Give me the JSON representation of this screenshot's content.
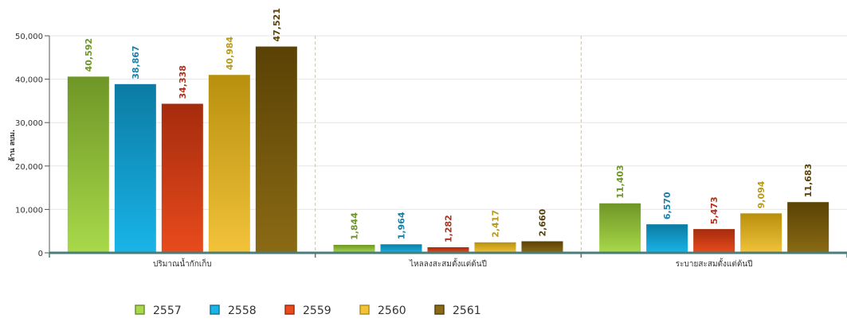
{
  "chart_data": {
    "type": "bar",
    "ylabel": "ล้าน ลบม.",
    "ylim": [
      0,
      50000
    ],
    "y_ticks": [
      "0",
      "10,000",
      "20,000",
      "30,000",
      "40,000",
      "50,000"
    ],
    "y_tick_values": [
      0,
      10000,
      20000,
      30000,
      40000,
      50000
    ],
    "categories": [
      "ปริมาณน้ำกักเก็บ",
      "ไหลลงสะสมตั้งแต่ต้นปี",
      "ระบายสะสมตั้งแต่ต้นปี"
    ],
    "series": [
      {
        "name": "2557",
        "values": [
          40592,
          1844,
          11403
        ],
        "labels": [
          "40,592",
          "1,844",
          "11,403"
        ],
        "color_top": "#6e9626",
        "color_bottom": "#a8d94a",
        "label_color": "#6e9626"
      },
      {
        "name": "2558",
        "values": [
          38867,
          1964,
          6570
        ],
        "labels": [
          "38,867",
          "1,964",
          "6,570"
        ],
        "color_top": "#0b7ba3",
        "color_bottom": "#19b4e8",
        "label_color": "#1a7fa8"
      },
      {
        "name": "2559",
        "values": [
          34338,
          1282,
          5473
        ],
        "labels": [
          "34,338",
          "1,282",
          "5,473"
        ],
        "color_top": "#a52b0d",
        "color_bottom": "#e84b1c",
        "label_color": "#b0301a"
      },
      {
        "name": "2560",
        "values": [
          40984,
          2417,
          9094
        ],
        "labels": [
          "40,984",
          "2,417",
          "9,094"
        ],
        "color_top": "#b8900e",
        "color_bottom": "#f2c23a",
        "label_color": "#b89a1a"
      },
      {
        "name": "2561",
        "values": [
          47521,
          2660,
          11683
        ],
        "labels": [
          "47,521",
          "2,660",
          "11,683"
        ],
        "color_top": "#5a4205",
        "color_bottom": "#8a6a14",
        "label_color": "#5a4205"
      }
    ],
    "legend_position": "bottom-left",
    "grid": true
  }
}
